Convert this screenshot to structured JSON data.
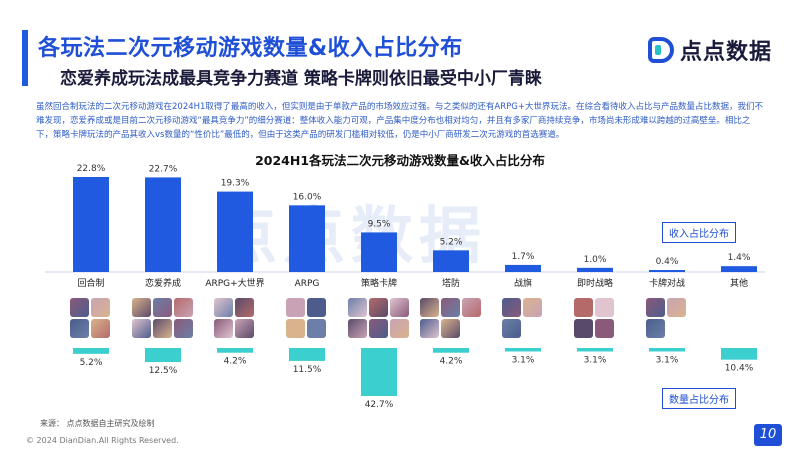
{
  "header": {
    "title": "各玩法二次元移动游戏数量&收入占比分布",
    "subtitle": "恋爱养成玩法成最具竞争力赛道 策略卡牌则依旧最受中小厂青睐",
    "logo_text": "点点数据"
  },
  "description": "虽然回合制玩法的二次元移动游戏在2024H1取得了最高的收入，但实则是由于单款产品的市场效应过强。与之类似的还有ARPG+大世界玩法。在综合看待收入占比与产品数量占比数据，我们不难发现，恋爱养成或是目前二次元移动游戏“最具竞争力”的细分赛道：整体收入能力可观，产品集中度分布也相对均匀，并且有多家厂商持续竞争，市场尚未形成难以跨越的过高壁垒。相比之下，策略卡牌玩法的产品其收入vs数量的“性价比”最低的，但由于这类产品的研发门槛相对较低，仍是中小厂商研发二次元游戏的首选赛道。",
  "watermark": "点点数据",
  "legend": {
    "revenue": "收入占比分布",
    "count": "数量占比分布"
  },
  "colors": {
    "revenue": "#1f5ae0",
    "count": "#3ccfcf",
    "accent": "#1e4fd6"
  },
  "chart_data": {
    "type": "bar",
    "title": "2024H1各玩法二次元移动游戏数量&收入占比分布",
    "categories": [
      "回合制",
      "恋爱养成",
      "ARPG+大世界",
      "ARPG",
      "策略卡牌",
      "塔防",
      "战旗",
      "即时战略",
      "卡牌对战",
      "其他"
    ],
    "series": [
      {
        "name": "收入占比分布",
        "values": [
          22.8,
          22.7,
          19.3,
          16.0,
          9.5,
          5.2,
          1.7,
          1.0,
          0.4,
          1.4
        ],
        "labels": [
          "22.8%",
          "22.7%",
          "19.3%",
          "16.0%",
          "9.5%",
          "5.2%",
          "1.7%",
          "1.0%",
          "0.4%",
          "1.4%"
        ]
      },
      {
        "name": "数量占比分布",
        "values": [
          5.2,
          12.5,
          4.2,
          11.5,
          42.7,
          4.2,
          3.1,
          3.1,
          3.1,
          10.4
        ],
        "labels": [
          "5.2%",
          "12.5%",
          "4.2%",
          "11.5%",
          "42.7%",
          "4.2%",
          "3.1%",
          "3.1%",
          "3.1%",
          "10.4%"
        ]
      }
    ],
    "thumb_counts": [
      4,
      6,
      4,
      4,
      6,
      5,
      3,
      4,
      3,
      0
    ]
  },
  "footer": {
    "source": "来源： 点点数据自主研究及绘制",
    "copyright": "© 2024 DianDian.All Rights Reserved.",
    "page": "10"
  }
}
